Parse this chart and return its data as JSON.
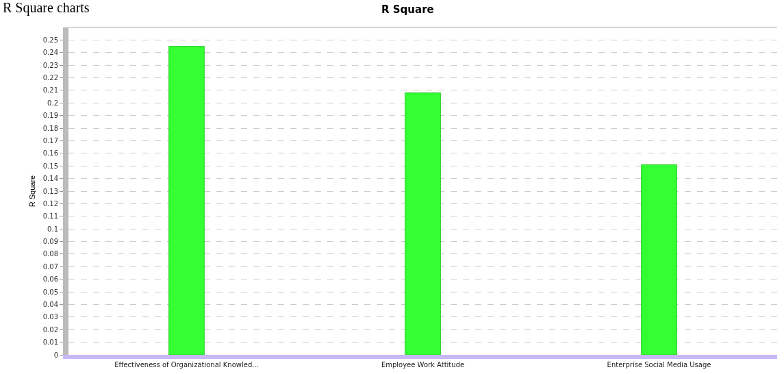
{
  "chart_data": {
    "type": "bar",
    "title": "R Square",
    "ylabel": "R Square",
    "annotations": [
      "R Square charts"
    ],
    "categories": [
      "Effectiveness of Organizational Knowled...",
      "Employee Work Attitude",
      "Enterprise Social Media Usage"
    ],
    "values": [
      0.245,
      0.208,
      0.151
    ],
    "color": "#33ff33",
    "ylim": [
      0,
      0.26
    ],
    "yticks": [
      0,
      0.01,
      0.02,
      0.03,
      0.04,
      0.05,
      0.06,
      0.07,
      0.08,
      0.09,
      0.1,
      0.11,
      0.12,
      0.13,
      0.14,
      0.15,
      0.16,
      0.17,
      0.18,
      0.19,
      0.2,
      0.21,
      0.22,
      0.23,
      0.24,
      0.25
    ],
    "grid": "y"
  }
}
